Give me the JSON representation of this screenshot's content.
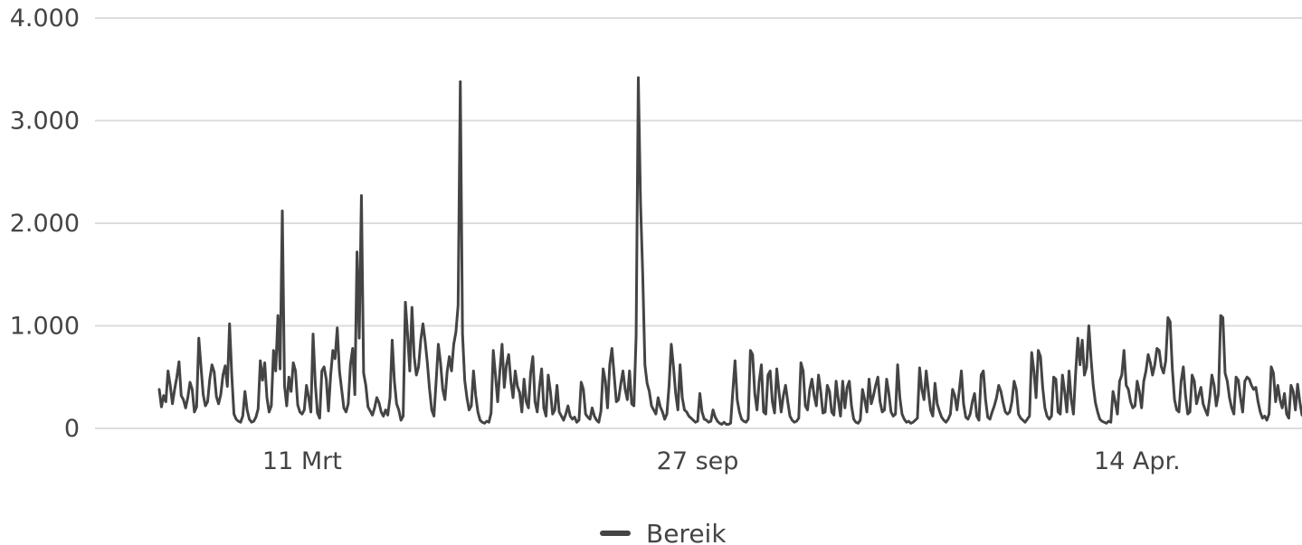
{
  "chart_data": {
    "type": "line",
    "title": "",
    "xlabel": "",
    "ylabel": "",
    "ylim": [
      0,
      4000
    ],
    "grid": true,
    "legend_placement": "bottom-center",
    "y_ticks": [
      {
        "value": 0,
        "label": "0"
      },
      {
        "value": 1000,
        "label": "1.000"
      },
      {
        "value": 2000,
        "label": "2.000"
      },
      {
        "value": 3000,
        "label": "3.000"
      },
      {
        "value": 4000,
        "label": "4.000"
      }
    ],
    "x_ticks": [
      {
        "index": 65,
        "label": "11 Mrt"
      },
      {
        "index": 245,
        "label": "27 sep"
      },
      {
        "index": 445,
        "label": "14 Apr."
      }
    ],
    "series": [
      {
        "name": "Bereik",
        "color": "#444444",
        "values": [
          380,
          210,
          320,
          260,
          560,
          420,
          240,
          380,
          500,
          650,
          320,
          280,
          200,
          300,
          450,
          380,
          160,
          210,
          880,
          600,
          330,
          220,
          260,
          480,
          620,
          550,
          310,
          240,
          330,
          520,
          610,
          410,
          1020,
          520,
          140,
          90,
          70,
          60,
          120,
          360,
          180,
          90,
          60,
          70,
          110,
          190,
          660,
          470,
          640,
          300,
          160,
          220,
          760,
          560,
          1100,
          580,
          2120,
          420,
          220,
          500,
          360,
          640,
          560,
          230,
          160,
          140,
          180,
          420,
          300,
          160,
          920,
          440,
          150,
          100,
          560,
          600,
          480,
          170,
          520,
          760,
          680,
          980,
          560,
          380,
          200,
          160,
          240,
          620,
          780,
          330,
          1720,
          880,
          2270,
          540,
          420,
          210,
          170,
          130,
          200,
          300,
          250,
          160,
          120,
          180,
          130,
          300,
          860,
          460,
          240,
          180,
          80,
          120,
          1230,
          920,
          560,
          1180,
          700,
          520,
          600,
          860,
          1020,
          850,
          640,
          380,
          180,
          120,
          460,
          820,
          640,
          380,
          280,
          550,
          700,
          560,
          820,
          940,
          1200,
          3380,
          920,
          470,
          300,
          180,
          220,
          560,
          320,
          160,
          80,
          60,
          50,
          70,
          60,
          150,
          760,
          520,
          260,
          560,
          820,
          400,
          620,
          720,
          460,
          300,
          560,
          410,
          350,
          160,
          480,
          260,
          200,
          540,
          700,
          260,
          160,
          400,
          580,
          200,
          120,
          520,
          360,
          140,
          180,
          420,
          160,
          120,
          80,
          140,
          220,
          120,
          90,
          110,
          60,
          80,
          450,
          380,
          140,
          110,
          90,
          200,
          120,
          80,
          60,
          170,
          580,
          460,
          200,
          620,
          780,
          520,
          260,
          280,
          430,
          560,
          380,
          280,
          560,
          240,
          220,
          900,
          3420,
          2200,
          1500,
          620,
          440,
          360,
          220,
          180,
          140,
          300,
          210,
          160,
          90,
          140,
          420,
          820,
          600,
          340,
          180,
          620,
          300,
          180,
          160,
          120,
          100,
          80,
          60,
          70,
          340,
          160,
          90,
          80,
          60,
          70,
          180,
          110,
          70,
          50,
          40,
          60,
          40,
          40,
          50,
          360,
          660,
          280,
          160,
          90,
          70,
          60,
          90,
          760,
          720,
          340,
          180,
          460,
          620,
          160,
          140,
          520,
          560,
          260,
          150,
          580,
          360,
          160,
          320,
          420,
          260,
          120,
          80,
          60,
          70,
          100,
          640,
          560,
          220,
          180,
          380,
          480,
          320,
          220,
          520,
          360,
          150,
          160,
          420,
          360,
          160,
          130,
          460,
          280,
          120,
          460,
          200,
          400,
          460,
          220,
          90,
          60,
          50,
          80,
          380,
          280,
          160,
          480,
          240,
          320,
          420,
          500,
          260,
          160,
          180,
          480,
          340,
          160,
          120,
          140,
          620,
          300,
          140,
          90,
          60,
          70,
          50,
          60,
          80,
          100,
          590,
          380,
          280,
          560,
          360,
          180,
          120,
          440,
          240,
          170,
          110,
          80,
          60,
          90,
          140,
          380,
          320,
          180,
          360,
          560,
          240,
          110,
          90,
          140,
          260,
          340,
          120,
          80,
          520,
          560,
          280,
          110,
          90,
          160,
          220,
          300,
          420,
          360,
          250,
          160,
          140,
          160,
          260,
          460,
          380,
          140,
          100,
          80,
          60,
          90,
          120,
          740,
          560,
          300,
          760,
          700,
          400,
          200,
          120,
          90,
          120,
          500,
          480,
          160,
          140,
          520,
          360,
          160,
          560,
          280,
          140,
          540,
          880,
          620,
          860,
          520,
          600,
          1000,
          680,
          420,
          250,
          160,
          90,
          70,
          60,
          50,
          70,
          60,
          360,
          260,
          140,
          460,
          520,
          760,
          420,
          380,
          260,
          200,
          220,
          460,
          360,
          200,
          460,
          560,
          720,
          640,
          520,
          620,
          780,
          760,
          600,
          540,
          660,
          1080,
          1040,
          580,
          280,
          180,
          160,
          460,
          600,
          320,
          140,
          160,
          520,
          460,
          240,
          320,
          400,
          240,
          180,
          130,
          300,
          520,
          420,
          220,
          340,
          1100,
          1080,
          540,
          460,
          300,
          200,
          140,
          500,
          470,
          300,
          160,
          460,
          500,
          480,
          420,
          380,
          400,
          260,
          160,
          100,
          120,
          80,
          140,
          600,
          540,
          260,
          420,
          280,
          200,
          340,
          140,
          100,
          420,
          360,
          180,
          430,
          260,
          130
        ]
      }
    ]
  }
}
